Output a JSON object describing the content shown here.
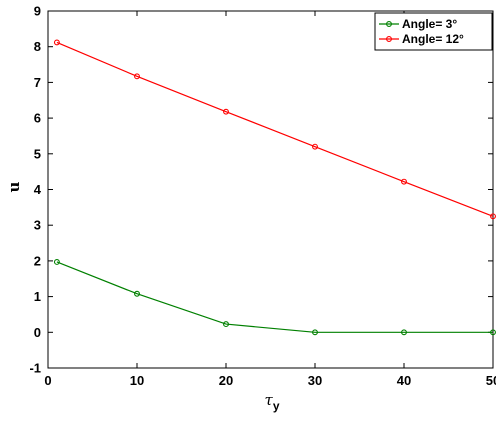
{
  "chart_data": {
    "type": "line",
    "title": "",
    "xlabel_symbol": "τ",
    "xlabel_subscript": "y",
    "ylabel": "u",
    "xlim": [
      0,
      50
    ],
    "ylim": [
      -1,
      9
    ],
    "xticks": [
      0,
      10,
      20,
      30,
      40,
      50
    ],
    "yticks": [
      -1,
      0,
      1,
      2,
      3,
      4,
      5,
      6,
      7,
      8,
      9
    ],
    "grid": false,
    "legend_position": "top-right",
    "x": [
      1,
      10,
      20,
      30,
      40,
      50
    ],
    "series": [
      {
        "name": "Angle= 3°",
        "color": "#008000",
        "values": [
          1.97,
          1.08,
          0.23,
          0.0,
          0.0,
          0.0
        ]
      },
      {
        "name": "Angle= 12°",
        "color": "#ff0000",
        "values": [
          8.12,
          7.17,
          6.18,
          5.2,
          4.22,
          3.25
        ]
      }
    ]
  }
}
